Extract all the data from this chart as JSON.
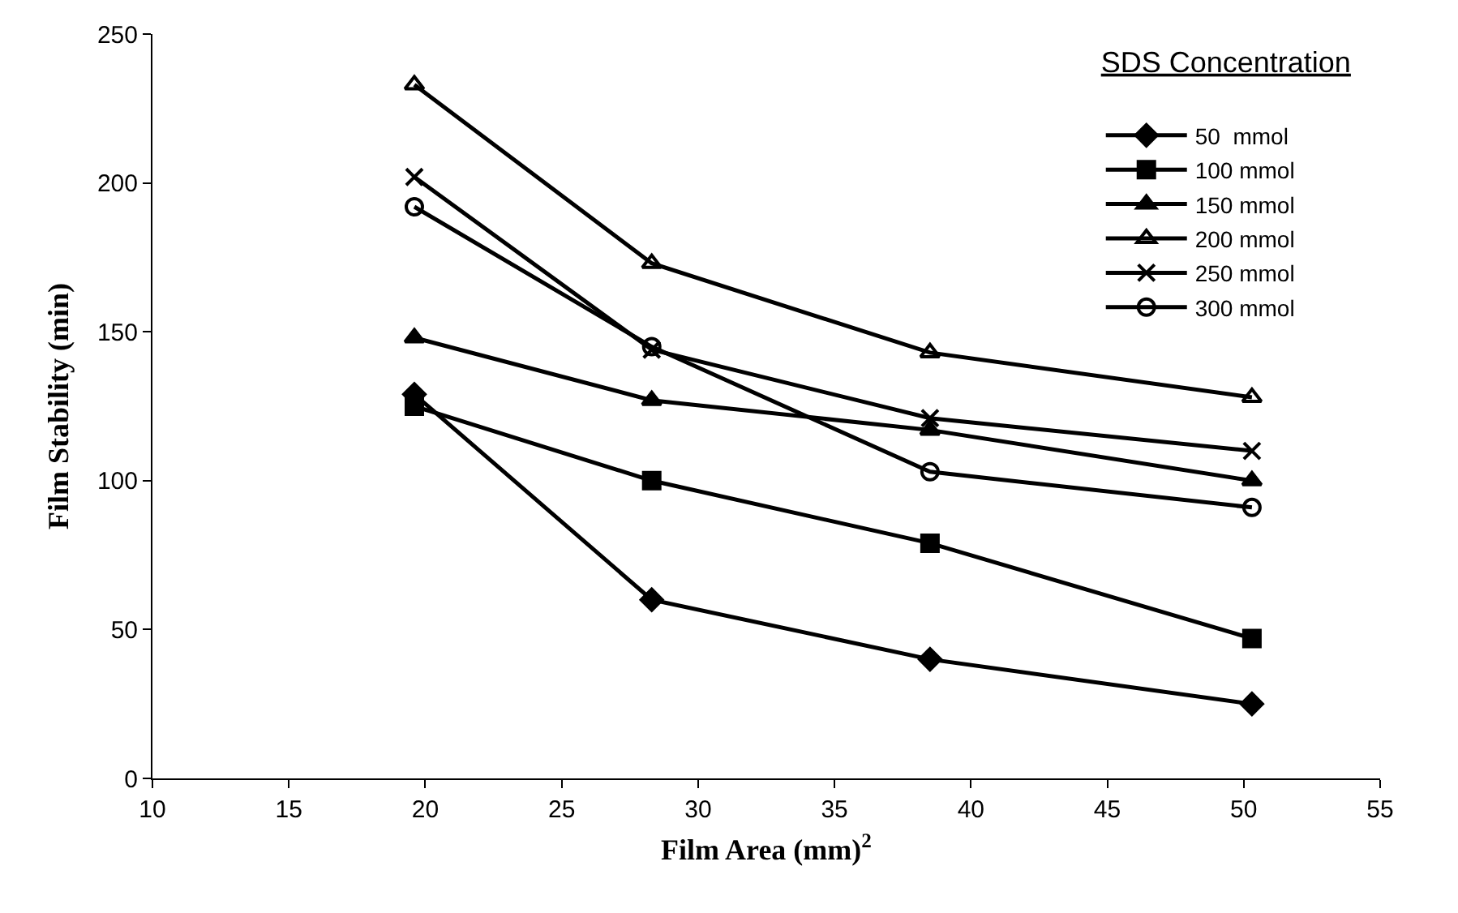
{
  "chart_data": {
    "type": "line",
    "xlabel": "Film Area (mm)$^{2}$",
    "ylabel": "Film Stability (min)",
    "legend_title": "SDS Concentration",
    "x": [
      19.6,
      28.3,
      38.5,
      50.3
    ],
    "series": [
      {
        "name": "50  mmol",
        "color": "#000000",
        "marker": "diamond",
        "values": [
          129,
          60,
          40,
          25
        ]
      },
      {
        "name": "100 mmol",
        "color": "#000000",
        "marker": "square",
        "values": [
          125,
          100,
          79,
          47
        ]
      },
      {
        "name": "150 mmol",
        "color": "#000000",
        "marker": "triangle",
        "values": [
          148,
          127,
          117,
          100
        ]
      },
      {
        "name": "200 mmol",
        "color": "#000000",
        "marker": "triangle-open",
        "values": [
          233,
          173,
          143,
          128
        ]
      },
      {
        "name": "250 mmol",
        "color": "#000000",
        "marker": "cross",
        "values": [
          202,
          144,
          121,
          110
        ]
      },
      {
        "name": "300 mmol",
        "color": "#000000",
        "marker": "circle-open",
        "values": [
          192,
          145,
          103,
          91
        ]
      }
    ],
    "xlim": [
      10,
      55
    ],
    "xticks": [
      10,
      15,
      20,
      25,
      30,
      35,
      40,
      45,
      50,
      55
    ],
    "ylim": [
      0,
      250
    ],
    "yticks": [
      0,
      50,
      100,
      150,
      200,
      250
    ],
    "grid": false,
    "legend": "top right",
    "line_style": "solid"
  }
}
